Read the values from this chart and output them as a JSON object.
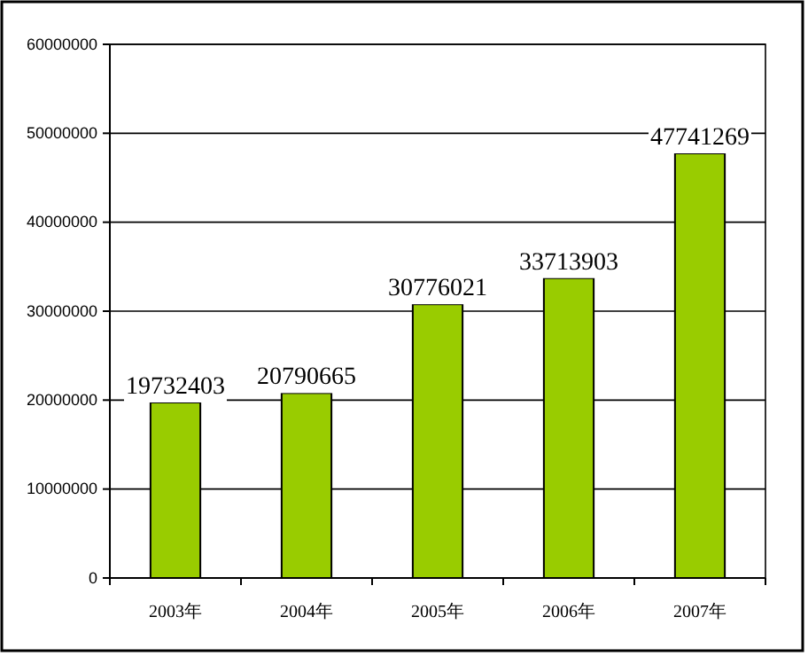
{
  "chart_data": {
    "type": "bar",
    "categories": [
      "2003年",
      "2004年",
      "2005年",
      "2006年",
      "2007年"
    ],
    "values": [
      19732403,
      20790665,
      30776021,
      33713903,
      47741269
    ],
    "color": "#99cc00",
    "ylim": [
      0,
      60000000
    ],
    "yticks": [
      0,
      10000000,
      20000000,
      30000000,
      40000000,
      50000000,
      60000000
    ],
    "grid": "y",
    "data_labels": true
  }
}
